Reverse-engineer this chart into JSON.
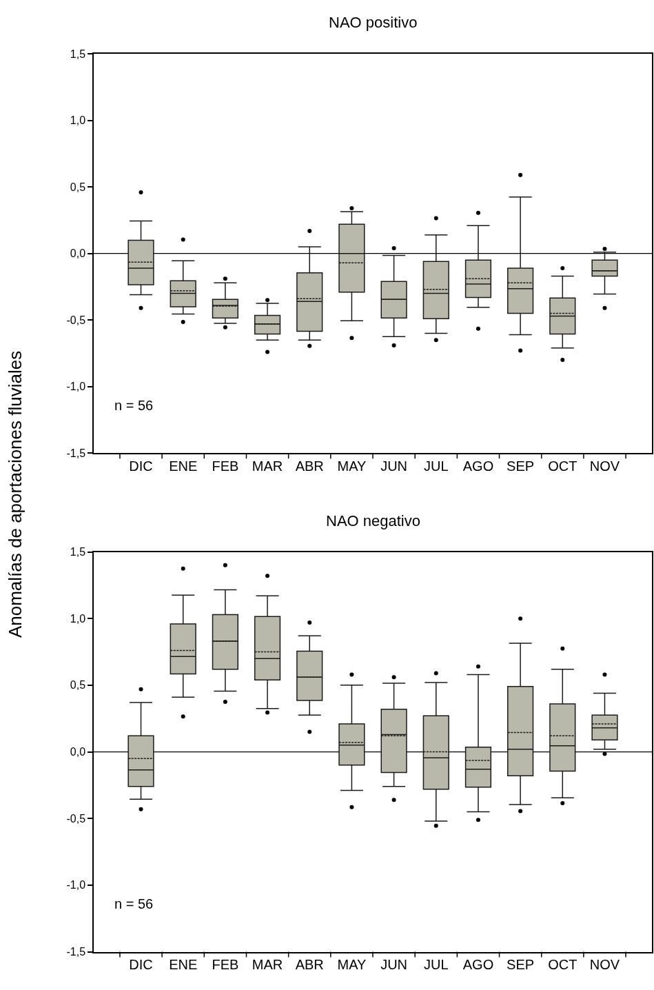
{
  "chart_data": [
    {
      "type": "box",
      "title": "NAO positivo",
      "ylabel": "Anomalías de aportaciones fluviales",
      "categories": [
        "DIC",
        "ENE",
        "FEB",
        "MAR",
        "ABR",
        "MAY",
        "JUN",
        "JUL",
        "AGO",
        "SEP",
        "OCT",
        "NOV"
      ],
      "color": "#b8b8ab",
      "ylim": [
        -1.5,
        1.5
      ],
      "yticks": [
        {
          "value": -1.5,
          "label": "-1,5"
        },
        {
          "value": -1.0,
          "label": "-1,0"
        },
        {
          "value": -0.5,
          "label": "-0,5"
        },
        {
          "value": 0,
          "label": "0,0"
        },
        {
          "value": 0.5,
          "label": "0,5"
        },
        {
          "value": 1.0,
          "label": "1,0"
        },
        {
          "value": 1.5,
          "label": "1,5"
        }
      ],
      "grid": false,
      "marker": "circle",
      "annotations": [
        "n = 56"
      ],
      "ref_lines": [
        {
          "axis": "y",
          "value": 0,
          "label": null
        }
      ],
      "boxes": [
        {
          "low": -0.31,
          "q1": -0.235,
          "median": -0.11,
          "q3": 0.1,
          "high": 0.245,
          "mean": -0.065,
          "outliers": [
            0.46,
            -0.41
          ]
        },
        {
          "low": -0.455,
          "q1": -0.4,
          "median": -0.3,
          "q3": -0.205,
          "high": -0.055,
          "mean": -0.28,
          "outliers": [
            0.105,
            -0.515
          ]
        },
        {
          "low": -0.525,
          "q1": -0.485,
          "median": -0.39,
          "q3": -0.345,
          "high": -0.22,
          "mean": -0.395,
          "outliers": [
            -0.19,
            -0.555
          ]
        },
        {
          "low": -0.65,
          "q1": -0.605,
          "median": -0.53,
          "q3": -0.465,
          "high": -0.375,
          "mean": -0.53,
          "outliers": [
            -0.35,
            -0.74
          ]
        },
        {
          "low": -0.65,
          "q1": -0.585,
          "median": -0.36,
          "q3": -0.145,
          "high": 0.05,
          "mean": -0.34,
          "outliers": [
            0.17,
            -0.695
          ]
        },
        {
          "low": -0.505,
          "q1": -0.29,
          "median": 0.0,
          "q3": 0.22,
          "high": 0.315,
          "mean": -0.07,
          "outliers": [
            0.34,
            -0.635
          ]
        },
        {
          "low": -0.625,
          "q1": -0.485,
          "median": -0.345,
          "q3": -0.21,
          "high": -0.015,
          "mean": -0.345,
          "outliers": [
            0.04,
            -0.69
          ]
        },
        {
          "low": -0.6,
          "q1": -0.49,
          "median": -0.3,
          "q3": -0.06,
          "high": 0.14,
          "mean": -0.27,
          "outliers": [
            0.265,
            -0.65
          ]
        },
        {
          "low": -0.405,
          "q1": -0.33,
          "median": -0.23,
          "q3": -0.05,
          "high": 0.21,
          "mean": -0.19,
          "outliers": [
            0.305,
            -0.565
          ]
        },
        {
          "low": -0.61,
          "q1": -0.45,
          "median": -0.265,
          "q3": -0.11,
          "high": 0.425,
          "mean": -0.22,
          "outliers": [
            0.59,
            -0.73
          ]
        },
        {
          "low": -0.71,
          "q1": -0.605,
          "median": -0.47,
          "q3": -0.335,
          "high": -0.17,
          "mean": -0.45,
          "outliers": [
            -0.11,
            -0.8
          ]
        },
        {
          "low": -0.305,
          "q1": -0.17,
          "median": -0.13,
          "q3": -0.05,
          "high": 0.01,
          "mean": -0.13,
          "outliers": [
            0.035,
            -0.41
          ]
        }
      ]
    },
    {
      "type": "box",
      "title": "NAO negativo",
      "categories": [
        "DIC",
        "ENE",
        "FEB",
        "MAR",
        "ABR",
        "MAY",
        "JUN",
        "JUL",
        "AGO",
        "SEP",
        "OCT",
        "NOV"
      ],
      "color": "#b8b8ab",
      "ylim": [
        -1.5,
        1.5
      ],
      "yticks": [
        {
          "value": -1.5,
          "label": "-1,5"
        },
        {
          "value": -1.0,
          "label": "-1,0"
        },
        {
          "value": -0.5,
          "label": "-0,5"
        },
        {
          "value": 0,
          "label": "0,0"
        },
        {
          "value": 0.5,
          "label": "0,5"
        },
        {
          "value": 1.0,
          "label": "1,0"
        },
        {
          "value": 1.5,
          "label": "1,5"
        }
      ],
      "grid": false,
      "marker": "circle",
      "annotations": [
        "n = 56"
      ],
      "ref_lines": [
        {
          "axis": "y",
          "value": 0,
          "label": null
        }
      ],
      "boxes": [
        {
          "low": -0.355,
          "q1": -0.26,
          "median": -0.135,
          "q3": 0.12,
          "high": 0.37,
          "mean": -0.05,
          "outliers": [
            0.47,
            -0.43
          ]
        },
        {
          "low": 0.41,
          "q1": 0.585,
          "median": 0.715,
          "q3": 0.96,
          "high": 1.175,
          "mean": 0.76,
          "outliers": [
            1.375,
            0.265
          ]
        },
        {
          "low": 0.455,
          "q1": 0.62,
          "median": 0.83,
          "q3": 1.03,
          "high": 1.215,
          "mean": 0.83,
          "outliers": [
            1.4,
            0.375
          ]
        },
        {
          "low": 0.325,
          "q1": 0.54,
          "median": 0.7,
          "q3": 1.015,
          "high": 1.17,
          "mean": 0.75,
          "outliers": [
            1.32,
            0.295
          ]
        },
        {
          "low": 0.275,
          "q1": 0.385,
          "median": 0.56,
          "q3": 0.755,
          "high": 0.87,
          "mean": 0.56,
          "outliers": [
            0.97,
            0.15
          ]
        },
        {
          "low": -0.29,
          "q1": -0.1,
          "median": 0.05,
          "q3": 0.21,
          "high": 0.5,
          "mean": 0.07,
          "outliers": [
            0.58,
            -0.415
          ]
        },
        {
          "low": -0.26,
          "q1": -0.155,
          "median": 0.13,
          "q3": 0.32,
          "high": 0.515,
          "mean": 0.12,
          "outliers": [
            0.56,
            -0.36
          ]
        },
        {
          "low": -0.52,
          "q1": -0.28,
          "median": -0.045,
          "q3": 0.27,
          "high": 0.52,
          "mean": 0.0,
          "outliers": [
            0.59,
            -0.555
          ]
        },
        {
          "low": -0.45,
          "q1": -0.265,
          "median": -0.13,
          "q3": 0.035,
          "high": 0.58,
          "mean": -0.065,
          "outliers": [
            0.64,
            -0.51
          ]
        },
        {
          "low": -0.395,
          "q1": -0.18,
          "median": 0.02,
          "q3": 0.49,
          "high": 0.815,
          "mean": 0.145,
          "outliers": [
            1.0,
            -0.445
          ]
        },
        {
          "low": -0.345,
          "q1": -0.145,
          "median": 0.045,
          "q3": 0.36,
          "high": 0.62,
          "mean": 0.12,
          "outliers": [
            0.775,
            -0.385
          ]
        },
        {
          "low": 0.02,
          "q1": 0.09,
          "median": 0.18,
          "q3": 0.275,
          "high": 0.44,
          "mean": 0.21,
          "outliers": [
            0.58,
            -0.015
          ]
        }
      ]
    }
  ]
}
